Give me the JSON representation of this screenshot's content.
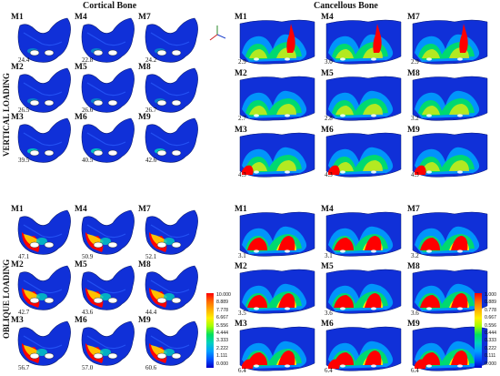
{
  "headers": {
    "cortical": "Cortical Bone",
    "cancellous": "Cancellous Bone",
    "vertical": "VERTICAL LOADING",
    "oblique": "OBLIQUE LOADING"
  },
  "models": [
    "M1",
    "M4",
    "M7",
    "M2",
    "M5",
    "M8",
    "M3",
    "M6",
    "M9"
  ],
  "values": {
    "vertical_cortical": [
      "24.4",
      "22.8",
      "24.2",
      "26.5",
      "26.6",
      "26.7",
      "39.5",
      "40.5",
      "42.6"
    ],
    "vertical_cancellous": [
      "2.9",
      "3.0",
      "2.9",
      "2.7",
      "2.8",
      "3.2",
      "4.3",
      "4.3",
      "4.3"
    ],
    "oblique_cortical": [
      "47.1",
      "50.9",
      "52.1",
      "42.7",
      "43.6",
      "44.4",
      "56.7",
      "57.0",
      "60.6"
    ],
    "oblique_cancellous": [
      "3.1",
      "3.1",
      "3.2",
      "3.5",
      "3.6",
      "3.6",
      "6.4",
      "6.4",
      "6.4"
    ]
  },
  "legend_cortical": [
    "10.000",
    "8.889",
    "7.778",
    "6.667",
    "5.556",
    "4.444",
    "3.333",
    "2.222",
    "1.111",
    "0.000"
  ],
  "legend_cancellous": [
    "1.000",
    "0.889",
    "0.778",
    "0.667",
    "0.556",
    "0.444",
    "0.333",
    "0.222",
    "0.111",
    "0.000"
  ],
  "colors": {
    "scale": [
      "#ff0000",
      "#ff6a00",
      "#ffb000",
      "#fff000",
      "#a0ff00",
      "#00e060",
      "#00d0c0",
      "#00a0ff",
      "#0050ff",
      "#0000c8"
    ]
  }
}
